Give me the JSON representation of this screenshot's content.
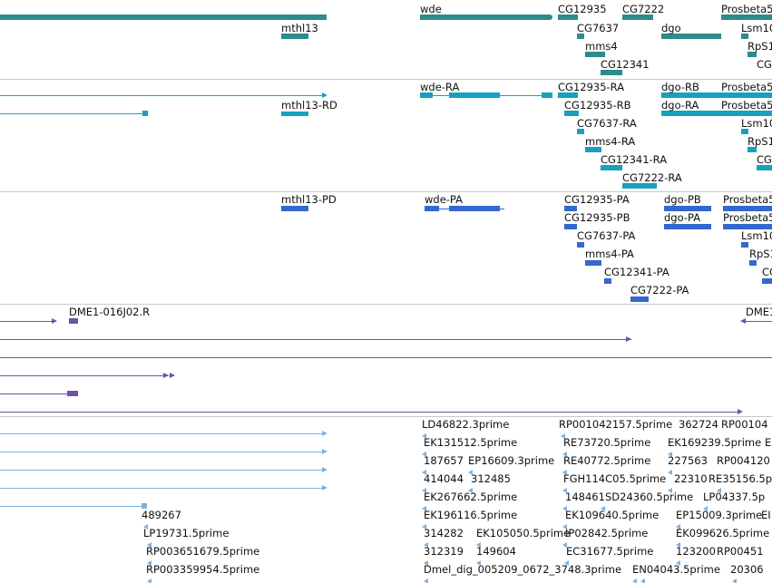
{
  "colors": {
    "gene": "#2e8b8b",
    "mrna": "#16a2bd",
    "protein": "#3368cf",
    "clone": "#6e52a8",
    "est": "#7fb2de",
    "separator": "#c8c8c8"
  },
  "tracks": {
    "genes": {
      "labels": [
        "wde",
        "CG12935",
        "CG7222",
        "Prosbeta5",
        "mthl13",
        "CG7637",
        "dgo",
        "Lsm10",
        "mms4",
        "RpS1",
        "CG12341",
        "CG"
      ]
    },
    "transcripts": {
      "labels": [
        "wde-RA",
        "CG12935-RA",
        "dgo-RB",
        "Prosbeta5",
        "mthl13-RD",
        "CG12935-RB",
        "dgo-RA",
        "Prosbeta5",
        "CG7637-RA",
        "Lsm10",
        "mms4-RA",
        "RpS1",
        "CG12341-RA",
        "CG",
        "CG7222-RA"
      ]
    },
    "proteins": {
      "labels": [
        "mthl13-PD",
        "wde-PA",
        "CG12935-PA",
        "dgo-PB",
        "Prosbeta5",
        "CG12935-PB",
        "dgo-PA",
        "Prosbeta5",
        "CG7637-PA",
        "Lsm10",
        "mms4-PA",
        "RpS1",
        "CG12341-PA",
        "CG",
        "CG7222-PA"
      ]
    },
    "clones": {
      "labels": [
        "DME1-016J02.R",
        "DME1"
      ]
    },
    "ests": {
      "labels": [
        "LD46822.3prime",
        "RP001042157.5prime",
        "362724",
        "RP00104",
        "EK131512.5prime",
        "RE73720.5prime",
        "EK169239.5prime",
        "E",
        "187657",
        "EP16609.3prime",
        "RE40772.5prime",
        "227563",
        "RP004120",
        "414044",
        "312485",
        "FGH114C05.5prime",
        "22310",
        "RE35156.5p",
        "EK267662.5prime",
        "148461",
        "SD24360.5prime",
        "LP04337.5p",
        "489267",
        "EK196116.5prime",
        "EK109640.5prime",
        "EP15009.3prime",
        "EI",
        "LP19731.5prime",
        "314282",
        "EK105050.5prime",
        "IP02842.5prime",
        "EK099626.5prime",
        "RP003651679.5prime",
        "312319",
        "149604",
        "EC31677.5prime",
        "123200",
        "RP00451",
        "RP003359954.5prime",
        "Dmel_dig_005209_0672_3748.3prime",
        "EN04043.5prime",
        "20306"
      ]
    }
  }
}
